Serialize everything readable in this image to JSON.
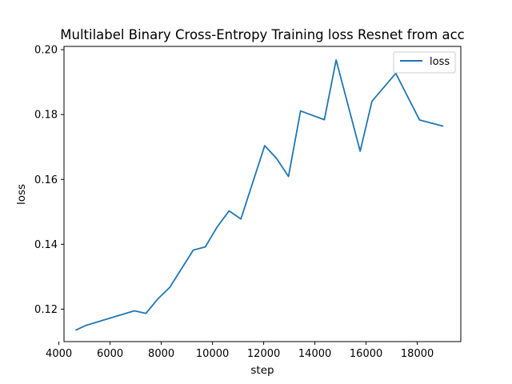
{
  "chart_data": {
    "type": "line",
    "title": "Multilabel Binary Cross-Entropy Training loss Resnet from acc",
    "xlabel": "step",
    "ylabel": "loss",
    "xlim": [
      4200,
      19700
    ],
    "ylim": [
      0.11,
      0.201
    ],
    "x_ticks": [
      4000,
      6000,
      8000,
      10000,
      12000,
      14000,
      16000,
      18000
    ],
    "x_tick_labels": [
      "4000",
      "6000",
      "8000",
      "10000",
      "12000",
      "14000",
      "16000",
      "18000"
    ],
    "y_ticks": [
      0.12,
      0.14,
      0.16,
      0.18,
      0.2
    ],
    "y_tick_labels": [
      "0.12",
      "0.14",
      "0.16",
      "0.18",
      "0.20"
    ],
    "grid": false,
    "legend_position": "top-right",
    "series": [
      {
        "name": "loss",
        "color": "#1f77b4",
        "x": [
          4650,
          5060,
          6950,
          7400,
          7870,
          8330,
          9250,
          9720,
          10180,
          10650,
          11110,
          12040,
          12500,
          12970,
          13440,
          14370,
          14830,
          15770,
          16230,
          17160,
          18090,
          19020
        ],
        "y": [
          0.1135,
          0.115,
          0.1195,
          0.1187,
          0.1232,
          0.1267,
          0.1382,
          0.1392,
          0.1453,
          0.1503,
          0.1478,
          0.1704,
          0.1665,
          0.1609,
          0.1811,
          0.1784,
          0.1968,
          0.1687,
          0.1841,
          0.1927,
          0.1783,
          0.1764
        ]
      }
    ]
  }
}
